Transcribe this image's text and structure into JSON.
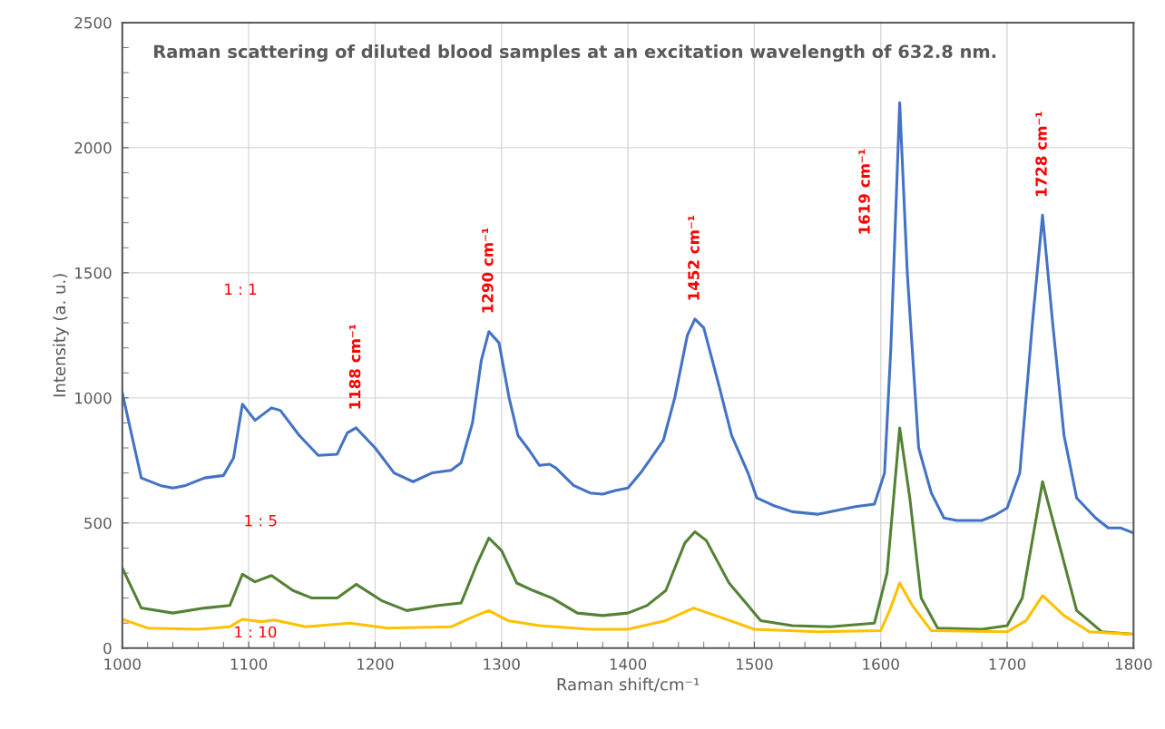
{
  "chart_data": {
    "type": "line",
    "title": "Raman scattering of diluted blood samples at an excitation wavelength of 632.8 nm.",
    "xlabel": "Raman shift/cm⁻¹",
    "ylabel": "Intensity (a. u.)",
    "xlim": [
      1000,
      1800
    ],
    "xticks": [
      1000,
      1100,
      1200,
      1300,
      1400,
      1500,
      1600,
      1700,
      1800
    ],
    "ylim": [
      0,
      2500
    ],
    "yticks": [
      0,
      500,
      1000,
      1500,
      2000,
      2500
    ],
    "grid": true,
    "legend": false,
    "marker": "none",
    "line_style": "solid",
    "series": [
      {
        "color": "#4472c4",
        "x": [
          1000,
          1015,
          1030,
          1040,
          1050,
          1065,
          1080,
          1088,
          1095,
          1105,
          1118,
          1125,
          1140,
          1155,
          1170,
          1178,
          1185,
          1200,
          1215,
          1230,
          1245,
          1260,
          1268,
          1277,
          1284,
          1290,
          1298,
          1306,
          1313,
          1322,
          1330,
          1338,
          1343,
          1357,
          1370,
          1380,
          1390,
          1400,
          1410,
          1417,
          1428,
          1437,
          1447,
          1453,
          1460,
          1472,
          1482,
          1495,
          1502,
          1515,
          1530,
          1550,
          1565,
          1580,
          1595,
          1603,
          1608,
          1615,
          1621,
          1630,
          1640,
          1650,
          1660,
          1680,
          1690,
          1700,
          1710,
          1720,
          1728,
          1736,
          1745,
          1755,
          1770,
          1780,
          1790,
          1800
        ],
        "values": [
          1020,
          680,
          650,
          640,
          650,
          680,
          690,
          760,
          975,
          910,
          960,
          950,
          850,
          770,
          775,
          860,
          880,
          800,
          700,
          665,
          700,
          710,
          740,
          900,
          1150,
          1265,
          1220,
          1000,
          850,
          790,
          730,
          735,
          720,
          650,
          620,
          615,
          630,
          640,
          700,
          750,
          830,
          1000,
          1250,
          1315,
          1280,
          1050,
          850,
          700,
          600,
          570,
          545,
          535,
          550,
          565,
          575,
          700,
          1200,
          2180,
          1500,
          800,
          620,
          520,
          510,
          510,
          530,
          560,
          700,
          1300,
          1730,
          1300,
          850,
          600,
          520,
          480,
          480,
          460
        ]
      },
      {
        "color": "#548235",
        "x": [
          1000,
          1015,
          1040,
          1065,
          1085,
          1095,
          1105,
          1118,
          1135,
          1150,
          1170,
          1185,
          1205,
          1225,
          1250,
          1268,
          1280,
          1290,
          1300,
          1312,
          1325,
          1340,
          1360,
          1380,
          1400,
          1415,
          1430,
          1445,
          1453,
          1462,
          1480,
          1495,
          1505,
          1530,
          1560,
          1595,
          1605,
          1615,
          1623,
          1632,
          1645,
          1680,
          1700,
          1712,
          1728,
          1742,
          1755,
          1775,
          1800
        ],
        "values": [
          320,
          160,
          140,
          160,
          170,
          295,
          265,
          290,
          230,
          200,
          200,
          255,
          190,
          150,
          170,
          180,
          330,
          440,
          390,
          260,
          230,
          200,
          140,
          130,
          140,
          170,
          230,
          420,
          465,
          430,
          260,
          170,
          110,
          90,
          85,
          100,
          300,
          880,
          600,
          200,
          80,
          75,
          90,
          200,
          665,
          400,
          150,
          65,
          55
        ]
      },
      {
        "color": "#ffc000",
        "x": [
          1000,
          1020,
          1060,
          1085,
          1095,
          1110,
          1120,
          1145,
          1180,
          1210,
          1260,
          1280,
          1290,
          1305,
          1330,
          1370,
          1400,
          1430,
          1452,
          1475,
          1500,
          1550,
          1600,
          1607,
          1615,
          1625,
          1640,
          1700,
          1715,
          1728,
          1745,
          1765,
          1800
        ],
        "values": [
          115,
          80,
          75,
          85,
          115,
          105,
          112,
          85,
          100,
          80,
          85,
          130,
          150,
          110,
          90,
          75,
          75,
          110,
          160,
          120,
          75,
          65,
          70,
          150,
          260,
          170,
          70,
          65,
          110,
          210,
          130,
          65,
          55
        ]
      }
    ],
    "annotations": [
      "1 : 1",
      "1 : 5",
      "1 : 10",
      "1619 cm⁻¹",
      {
        "text": "1188 cm⁻¹",
        "x": 1185,
        "y": 880
      },
      {
        "text": "1290 cm⁻¹",
        "x": 1290,
        "y": 1265
      },
      {
        "text": "1452 cm⁻¹",
        "x": 1453,
        "y": 1315
      },
      {
        "text": "1728 cm⁻¹",
        "x": 1728,
        "y": 1730
      }
    ]
  }
}
